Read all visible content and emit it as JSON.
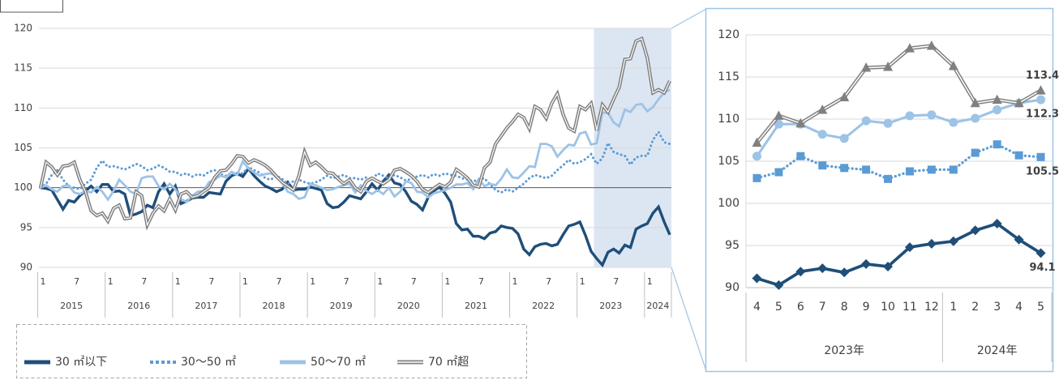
{
  "chart_data": [
    {
      "type": "line",
      "ylim": [
        90,
        120
      ],
      "yticks": [
        90,
        95,
        100,
        105,
        110,
        115,
        120
      ],
      "grid": true,
      "legend": "bottom-left",
      "categories": [
        "1",
        null,
        null,
        null,
        null,
        null,
        "7",
        null,
        null,
        null,
        null,
        null,
        "1",
        null,
        null,
        null,
        null,
        null,
        "7",
        null,
        null,
        null,
        null,
        null,
        "1",
        null,
        null,
        null,
        null,
        null,
        "7",
        null,
        null,
        null,
        null,
        null,
        "1",
        null,
        null,
        null,
        null,
        null,
        "7",
        null,
        null,
        null,
        null,
        null,
        "1",
        null,
        null,
        null,
        null,
        null,
        "7",
        null,
        null,
        null,
        null,
        null,
        "1",
        null,
        null,
        null,
        null,
        null,
        "7",
        null,
        null,
        null,
        null,
        null,
        "1",
        null,
        null,
        null,
        null,
        null,
        "7",
        null,
        null,
        null,
        null,
        null,
        "1",
        null,
        null,
        null,
        null,
        null,
        "7",
        null,
        null,
        null,
        null,
        null,
        "1",
        null,
        null,
        null,
        null,
        null,
        "7",
        null,
        null,
        null,
        null,
        null,
        "1",
        null,
        null,
        null,
        null
      ],
      "groups": [
        "2015",
        "2016",
        "2017",
        "2018",
        "2019",
        "2020",
        "2021",
        "2022",
        "2023",
        "2024"
      ],
      "series": [
        {
          "name": "30 ㎡以下",
          "color": "#1f4e79",
          "style": "solid",
          "values": [
            100,
            99.9,
            99.7,
            98.5,
            97.3,
            98.4,
            98.2,
            99,
            99.6,
            100.2,
            99.5,
            100.4,
            100.4,
            99.5,
            99.6,
            99.2,
            96.5,
            96.7,
            97,
            97.8,
            97.5,
            99.5,
            100.5,
            99.2,
            100.2,
            98,
            98.3,
            98.7,
            98.8,
            98.8,
            99.4,
            99.3,
            99.2,
            100.8,
            101.5,
            101.8,
            101.4,
            102.4,
            101.5,
            100.8,
            100.2,
            99.9,
            99.5,
            99.8,
            100.7,
            99.7,
            99.8,
            99.8,
            100.1,
            99.9,
            99.7,
            98,
            97.5,
            97.6,
            98.2,
            99,
            98.8,
            98.6,
            99.5,
            100.5,
            99.7,
            100.8,
            101.6,
            100.6,
            100.4,
            99.5,
            98.3,
            97.9,
            97.2,
            98.8,
            99.6,
            100.1,
            99.3,
            98.2,
            95.5,
            94.7,
            94.8,
            93.9,
            93.9,
            93.6,
            94.3,
            94.5,
            95.2,
            95,
            94.9,
            94.2,
            92.3,
            91.6,
            92.6,
            92.9,
            93,
            92.7,
            92.9,
            94.1,
            95.2,
            95.4,
            95.7,
            94,
            92,
            91.1,
            90.3,
            91.9,
            92.3,
            91.8,
            92.8,
            92.5,
            94.8,
            95.2,
            95.5,
            96.8,
            97.6,
            95.7,
            94.1
          ]
        },
        {
          "name": "30～50 ㎡",
          "color": "#5b9bd5",
          "style": "dotted",
          "values": [
            100,
            100.5,
            101.6,
            102.2,
            101,
            100.2,
            100,
            99.8,
            100.5,
            101,
            102.5,
            103.4,
            102.6,
            102.7,
            102.5,
            102.3,
            102.6,
            103,
            102.7,
            102.2,
            102.4,
            102.8,
            102.5,
            102,
            102,
            101.6,
            101.8,
            101.4,
            101.7,
            101.5,
            102,
            102.2,
            101.7,
            101.5,
            101.6,
            101.9,
            101.8,
            102.6,
            102.2,
            101.9,
            101.2,
            101,
            101.5,
            101.1,
            100.5,
            100.8,
            101,
            100.7,
            100.5,
            100.7,
            101,
            101.5,
            101.2,
            101.4,
            101.6,
            101.2,
            101.2,
            101,
            101.3,
            101,
            101.8,
            101.5,
            101.2,
            101.6,
            101.3,
            100.9,
            101.1,
            101.4,
            101.6,
            101.3,
            101.7,
            101.5,
            101.8,
            101.6,
            101.5,
            101.2,
            101,
            100.8,
            101,
            101.2,
            100.4,
            99.7,
            99.4,
            99.8,
            99.5,
            100,
            100.5,
            101.2,
            101.6,
            101.4,
            101.2,
            101.5,
            102.2,
            102.8,
            103.5,
            103,
            103.2,
            103.6,
            104.2,
            103,
            103.7,
            105.6,
            104.5,
            104.2,
            104,
            102.9,
            103.8,
            104,
            104,
            106,
            107,
            105.7,
            105.5
          ]
        },
        {
          "name": "50～70 ㎡",
          "color": "#9dc3e6",
          "style": "solid",
          "values": [
            100,
            100.3,
            99.8,
            99.5,
            100.2,
            100.3,
            99.4,
            99.2,
            99.6,
            99.4,
            100.1,
            99.5,
            98.5,
            99.6,
            101,
            100.3,
            99.5,
            99.2,
            101.2,
            101.4,
            101.4,
            100.2,
            99.8,
            100.5,
            99.8,
            98.6,
            98.2,
            99,
            99.5,
            99.6,
            100.7,
            101,
            101.5,
            101.3,
            102,
            101.6,
            103.3,
            102.4,
            101.9,
            101.5,
            101.7,
            101.8,
            101.4,
            100.6,
            99.5,
            99.2,
            98.6,
            98.8,
            100.5,
            100.3,
            100,
            99.7,
            99.8,
            100.1,
            100.3,
            100.5,
            99.4,
            100.3,
            99.6,
            99.2,
            99.7,
            99.2,
            100,
            98.9,
            99.5,
            100.8,
            100.6,
            99.5,
            99.4,
            98.8,
            99.3,
            99.5,
            99.7,
            100,
            100.4,
            100.4,
            100.6,
            99.8,
            101.1,
            100.2,
            100.5,
            100.3,
            101.1,
            102.3,
            101.3,
            101.2,
            101.9,
            102.7,
            102.6,
            105.5,
            105.5,
            105.2,
            103.9,
            104.7,
            105.4,
            105.3,
            106.8,
            107,
            105.4,
            105.6,
            109.4,
            109.4,
            108.2,
            107.7,
            109.8,
            109.5,
            110.4,
            110.5,
            109.6,
            110.1,
            111.1,
            111.9,
            112.3
          ]
        },
        {
          "name": "70 ㎡超",
          "color": "#808080",
          "style": "double",
          "values": [
            100,
            103.2,
            102.6,
            101.6,
            102.7,
            102.8,
            103.2,
            101,
            99.5,
            97.1,
            96.5,
            96.8,
            95.8,
            97.4,
            97.8,
            96.1,
            96.2,
            99.5,
            99,
            95.3,
            96.8,
            97.7,
            97.1,
            98.6,
            97.2,
            99.2,
            99.5,
            98.8,
            99,
            99.5,
            100,
            101.3,
            102.1,
            102.2,
            103,
            104,
            103.9,
            103.1,
            103.5,
            103.2,
            102.8,
            102.2,
            101.4,
            100.7,
            100.2,
            99.7,
            101.5,
            104.5,
            102.8,
            103.2,
            102.6,
            101.9,
            101.8,
            101.1,
            100.5,
            101,
            100,
            99.5,
            100.8,
            101.2,
            100.8,
            100.5,
            101,
            102.2,
            102.4,
            102,
            101.5,
            100.8,
            99.8,
            99.4,
            99.9,
            100.4,
            100.1,
            100.7,
            102.3,
            101.8,
            101.2,
            100.3,
            100.1,
            102.5,
            103.2,
            105.5,
            106.5,
            107.5,
            108.3,
            109.2,
            108.8,
            107.4,
            110.2,
            109.8,
            108.7,
            110.6,
            111.8,
            109.2,
            107.5,
            107.1,
            110.2,
            109.8,
            110.6,
            107.2,
            110.4,
            109.5,
            111.1,
            112.6,
            116.1,
            116.2,
            118.4,
            118.7,
            116.3,
            111.9,
            112.3,
            111.9,
            113.4
          ]
        }
      ]
    },
    {
      "type": "line",
      "ylim": [
        90,
        120
      ],
      "yticks": [
        90,
        95,
        100,
        105,
        110,
        115,
        120
      ],
      "grid": true,
      "label_last": true,
      "categories": [
        "4",
        "5",
        "6",
        "7",
        "8",
        "9",
        "10",
        "11",
        "12",
        "1",
        "2",
        "3",
        "4",
        "5"
      ],
      "groups": [
        "2023年",
        "2024年"
      ],
      "series": [
        {
          "name": "30 ㎡以下",
          "color": "#1f4e79",
          "style": "solid",
          "marker": "diamond",
          "label_position": "below",
          "values": [
            91.1,
            90.3,
            91.9,
            92.3,
            91.8,
            92.8,
            92.5,
            94.8,
            95.2,
            95.5,
            96.8,
            97.6,
            95.7,
            94.1
          ]
        },
        {
          "name": "30～50 ㎡",
          "color": "#5b9bd5",
          "style": "dotted",
          "marker": "square",
          "label_position": "below",
          "values": [
            103,
            103.7,
            105.6,
            104.5,
            104.2,
            104,
            102.9,
            103.8,
            104,
            104,
            106,
            107,
            105.7,
            105.5
          ]
        },
        {
          "name": "50～70 ㎡",
          "color": "#9dc3e6",
          "style": "solid",
          "marker": "circle",
          "label_position": "below",
          "values": [
            105.6,
            109.4,
            109.4,
            108.2,
            107.7,
            109.8,
            109.5,
            110.4,
            110.5,
            109.6,
            110.1,
            111.1,
            111.9,
            112.3
          ]
        },
        {
          "name": "70 ㎡超",
          "color": "#808080",
          "style": "double",
          "marker": "triangle",
          "label_position": "above",
          "values": [
            107.2,
            110.4,
            109.5,
            111.1,
            112.6,
            116.1,
            116.2,
            118.4,
            118.7,
            116.3,
            111.9,
            112.3,
            111.9,
            113.4
          ]
        }
      ]
    }
  ]
}
